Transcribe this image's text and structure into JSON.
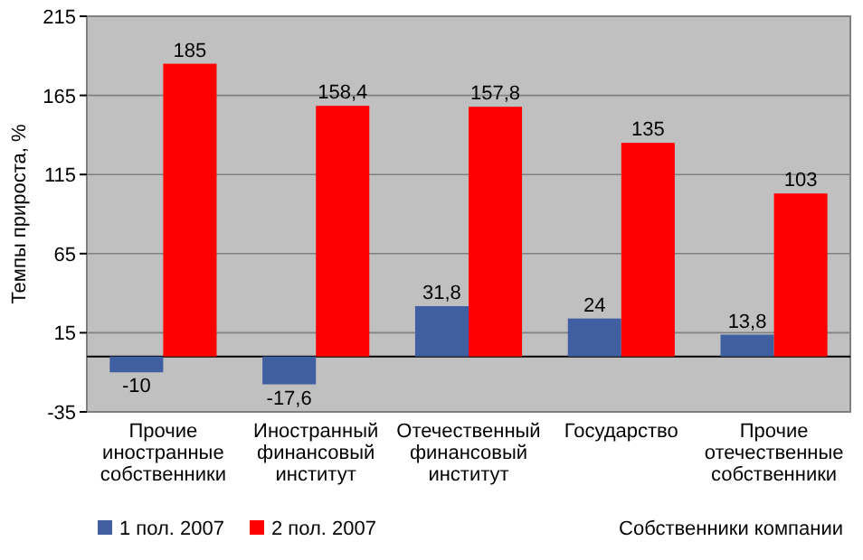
{
  "chart_data": {
    "type": "bar",
    "ylabel": "Темпы прироста, %",
    "xlabel": "Собственники компании",
    "categories": [
      "Прочие иностранные собственники",
      "Иностранный финансовый институт",
      "Отечественный финансовый институт",
      "Государство",
      "Прочие отечественные собственники"
    ],
    "series": [
      {
        "name": "1 пол. 2007",
        "color": "#3f5fa0",
        "values": [
          -10,
          -17.6,
          31.8,
          24,
          13.8
        ],
        "value_labels": [
          "-10",
          "-17,6",
          "31,8",
          "24",
          "13,8"
        ]
      },
      {
        "name": "2 пол. 2007",
        "color": "#ff0000",
        "values": [
          185,
          158.4,
          157.8,
          135,
          103
        ],
        "value_labels": [
          "185",
          "158,4",
          "157,8",
          "135",
          "103"
        ]
      }
    ],
    "ylim": [
      -35,
      215
    ],
    "yticks": [
      -35,
      15,
      65,
      115,
      165,
      215
    ],
    "grid": "y",
    "legend": "bottom left"
  }
}
